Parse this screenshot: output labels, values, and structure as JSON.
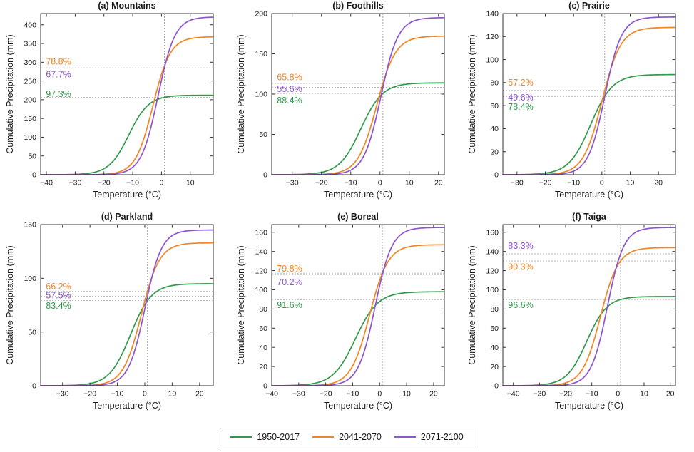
{
  "colors": {
    "series_1950_2017": "#319a4d",
    "series_2041_2070": "#f28522",
    "series_2071_2100": "#8c55d2",
    "reference_line": "#b3b3b3",
    "threshold_line": "#9a9a9a",
    "axis": "#333333",
    "text": "#1a1a1a"
  },
  "legend": {
    "position": "bottom-center",
    "items": [
      {
        "label": "1950-2017",
        "color_key": "series_1950_2017"
      },
      {
        "label": "2041-2070",
        "color_key": "series_2041_2070"
      },
      {
        "label": "2071-2100",
        "color_key": "series_2071_2100"
      }
    ]
  },
  "axes_labels": {
    "x": "Temperature (°C)",
    "y": "Cumulative Precipitation (mm)"
  },
  "chart_data": [
    {
      "type": "line",
      "title": "(a) Mountains",
      "xlabel": "Temperature (°C)",
      "ylabel": "Cumulative Precipitation (mm)",
      "xlim": [
        -42,
        18
      ],
      "ylim": [
        0,
        430
      ],
      "xticks": [
        -40,
        -30,
        -20,
        -10,
        0,
        10
      ],
      "yticks": [
        0,
        50,
        100,
        150,
        200,
        250,
        300,
        350,
        400
      ],
      "grid": "off",
      "threshold_temp_c": 1,
      "series": [
        {
          "name": "1950-2017",
          "color_key": "series_1950_2017",
          "plateau_mm": 212,
          "percent_at_threshold": 97.3,
          "steepness": 0.29,
          "label_y_mm": 215
        },
        {
          "name": "2041-2070",
          "color_key": "series_2041_2070",
          "plateau_mm": 368,
          "percent_at_threshold": 78.8,
          "steepness": 0.33,
          "label_y_mm": 302
        },
        {
          "name": "2071-2100",
          "color_key": "series_2071_2100",
          "plateau_mm": 421,
          "percent_at_threshold": 67.7,
          "steepness": 0.34,
          "label_y_mm": 268
        }
      ]
    },
    {
      "type": "line",
      "title": "(b) Foothills",
      "xlabel": "Temperature (°C)",
      "ylabel": "Cumulative Precipitation (mm)",
      "xlim": [
        -37,
        22
      ],
      "ylim": [
        0,
        200
      ],
      "xticks": [
        -30,
        -20,
        -10,
        0,
        10,
        20
      ],
      "yticks": [
        0,
        50,
        100,
        150,
        200
      ],
      "grid": "off",
      "threshold_temp_c": 1,
      "series": [
        {
          "name": "1950-2017",
          "color_key": "series_1950_2017",
          "plateau_mm": 114,
          "percent_at_threshold": 88.4,
          "steepness": 0.27,
          "label_y_mm": 92
        },
        {
          "name": "2041-2070",
          "color_key": "series_2041_2070",
          "plateau_mm": 172,
          "percent_at_threshold": 65.8,
          "steepness": 0.31,
          "label_y_mm": 121
        },
        {
          "name": "2071-2100",
          "color_key": "series_2071_2100",
          "plateau_mm": 195,
          "percent_at_threshold": 55.6,
          "steepness": 0.34,
          "label_y_mm": 106.5
        }
      ]
    },
    {
      "type": "line",
      "title": "(c) Prairie",
      "xlabel": "Temperature (°C)",
      "ylabel": "Cumulative Precipitation (mm)",
      "xlim": [
        -35,
        26
      ],
      "ylim": [
        0,
        140
      ],
      "xticks": [
        -30,
        -20,
        -10,
        0,
        10,
        20
      ],
      "yticks": [
        0,
        20,
        40,
        60,
        80,
        100,
        120,
        140
      ],
      "grid": "off",
      "threshold_temp_c": 1,
      "series": [
        {
          "name": "1950-2017",
          "color_key": "series_1950_2017",
          "plateau_mm": 87,
          "percent_at_threshold": 78.4,
          "steepness": 0.26,
          "label_y_mm": 59
        },
        {
          "name": "2041-2070",
          "color_key": "series_2041_2070",
          "plateau_mm": 128,
          "percent_at_threshold": 57.2,
          "steepness": 0.3,
          "label_y_mm": 80
        },
        {
          "name": "2071-2100",
          "color_key": "series_2071_2100",
          "plateau_mm": 137,
          "percent_at_threshold": 49.6,
          "steepness": 0.34,
          "label_y_mm": 67
        }
      ]
    },
    {
      "type": "line",
      "title": "(d) Parkland",
      "xlabel": "Temperature (°C)",
      "ylabel": "Cumulative Precipitation (mm)",
      "xlim": [
        -38,
        25
      ],
      "ylim": [
        0,
        150
      ],
      "xticks": [
        -30,
        -20,
        -10,
        0,
        10,
        20
      ],
      "yticks": [
        0,
        50,
        100,
        150
      ],
      "grid": "off",
      "threshold_temp_c": 1,
      "series": [
        {
          "name": "1950-2017",
          "color_key": "series_1950_2017",
          "plateau_mm": 95,
          "percent_at_threshold": 83.4,
          "steepness": 0.26,
          "label_y_mm": 74.5
        },
        {
          "name": "2041-2070",
          "color_key": "series_2041_2070",
          "plateau_mm": 133,
          "percent_at_threshold": 66.2,
          "steepness": 0.3,
          "label_y_mm": 92.5
        },
        {
          "name": "2071-2100",
          "color_key": "series_2071_2100",
          "plateau_mm": 145,
          "percent_at_threshold": 57.5,
          "steepness": 0.33,
          "label_y_mm": 84
        }
      ]
    },
    {
      "type": "line",
      "title": "(e) Boreal",
      "xlabel": "Temperature (°C)",
      "ylabel": "Cumulative Precipitation (mm)",
      "xlim": [
        -40,
        24
      ],
      "ylim": [
        0,
        168
      ],
      "xticks": [
        -40,
        -30,
        -20,
        -10,
        0,
        10,
        20
      ],
      "yticks": [
        0,
        20,
        40,
        60,
        80,
        100,
        120,
        140,
        160
      ],
      "grid": "off",
      "threshold_temp_c": 1,
      "series": [
        {
          "name": "1950-2017",
          "color_key": "series_1950_2017",
          "plateau_mm": 98,
          "percent_at_threshold": 91.6,
          "steepness": 0.24,
          "label_y_mm": 84
        },
        {
          "name": "2041-2070",
          "color_key": "series_2041_2070",
          "plateau_mm": 147,
          "percent_at_threshold": 79.8,
          "steepness": 0.29,
          "label_y_mm": 122
        },
        {
          "name": "2071-2100",
          "color_key": "series_2071_2100",
          "plateau_mm": 165,
          "percent_at_threshold": 70.2,
          "steepness": 0.32,
          "label_y_mm": 108
        }
      ]
    },
    {
      "type": "line",
      "title": "(f) Taiga",
      "xlabel": "Temperature (°C)",
      "ylabel": "Cumulative Precipitation (mm)",
      "xlim": [
        -44,
        22
      ],
      "ylim": [
        0,
        168
      ],
      "xticks": [
        -40,
        -30,
        -20,
        -10,
        0,
        10,
        20
      ],
      "yticks": [
        0,
        20,
        40,
        60,
        80,
        100,
        120,
        140,
        160
      ],
      "grid": "off",
      "threshold_temp_c": 1,
      "series": [
        {
          "name": "1950-2017",
          "color_key": "series_1950_2017",
          "plateau_mm": 93,
          "percent_at_threshold": 96.6,
          "steepness": 0.26,
          "label_y_mm": 84
        },
        {
          "name": "2041-2070",
          "color_key": "series_2041_2070",
          "plateau_mm": 144,
          "percent_at_threshold": 90.3,
          "steepness": 0.29,
          "label_y_mm": 124
        },
        {
          "name": "2071-2100",
          "color_key": "series_2071_2100",
          "plateau_mm": 165,
          "percent_at_threshold": 83.3,
          "steepness": 0.32,
          "label_y_mm": 146
        }
      ]
    }
  ]
}
